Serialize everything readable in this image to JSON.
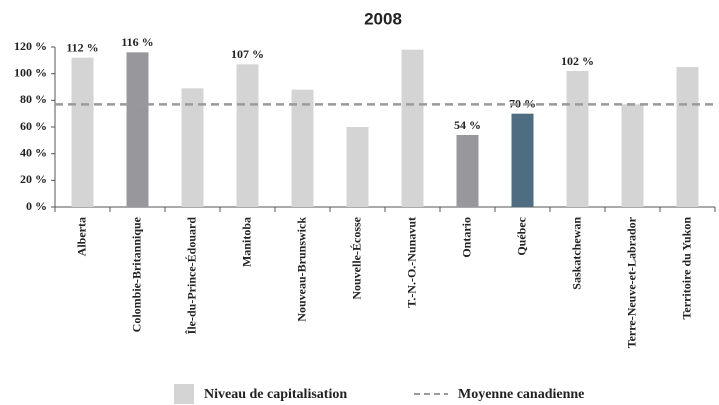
{
  "chart_data": {
    "type": "bar",
    "title": "2008",
    "categories": [
      "Alberta",
      "Colombie-Britannique",
      "Île-du-Prince-Édouard",
      "Manitoba",
      "Nouveau-Brunswick",
      "Nouvelle-Écosse",
      "T.-N.-O.-Nunavut",
      "Ontario",
      "Québec",
      "Saskatchewan",
      "Terre-Neuve-et-Labrador",
      "Territoire du Yukon"
    ],
    "series": [
      {
        "name": "Niveau de capitalisation",
        "values": [
          112,
          116,
          89,
          107,
          88,
          60,
          118,
          54,
          70,
          102,
          77,
          105
        ],
        "value_labels": [
          "112 %",
          "116 %",
          null,
          "107 %",
          null,
          null,
          null,
          "54 %",
          "70 %",
          "102 %",
          null,
          null
        ],
        "colors": [
          "#d4d4d4",
          "#98989c",
          "#d4d4d4",
          "#d4d4d4",
          "#d4d4d4",
          "#d4d4d4",
          "#d4d4d4",
          "#98989c",
          "#4f6d80",
          "#d4d4d4",
          "#d4d4d4",
          "#d4d4d4"
        ]
      }
    ],
    "reference_line": {
      "name": "Moyenne canadienne",
      "value": 77,
      "color": "#9a9a9a"
    },
    "ylim": [
      0,
      120
    ],
    "yticks": [
      {
        "value": 0,
        "label": "0 %"
      },
      {
        "value": 20,
        "label": "20 %"
      },
      {
        "value": 40,
        "label": "40 %"
      },
      {
        "value": 60,
        "label": "60 %"
      },
      {
        "value": 80,
        "label": "80 %"
      },
      {
        "value": 100,
        "label": "100 %"
      },
      {
        "value": 120,
        "label": "120 %"
      }
    ]
  }
}
